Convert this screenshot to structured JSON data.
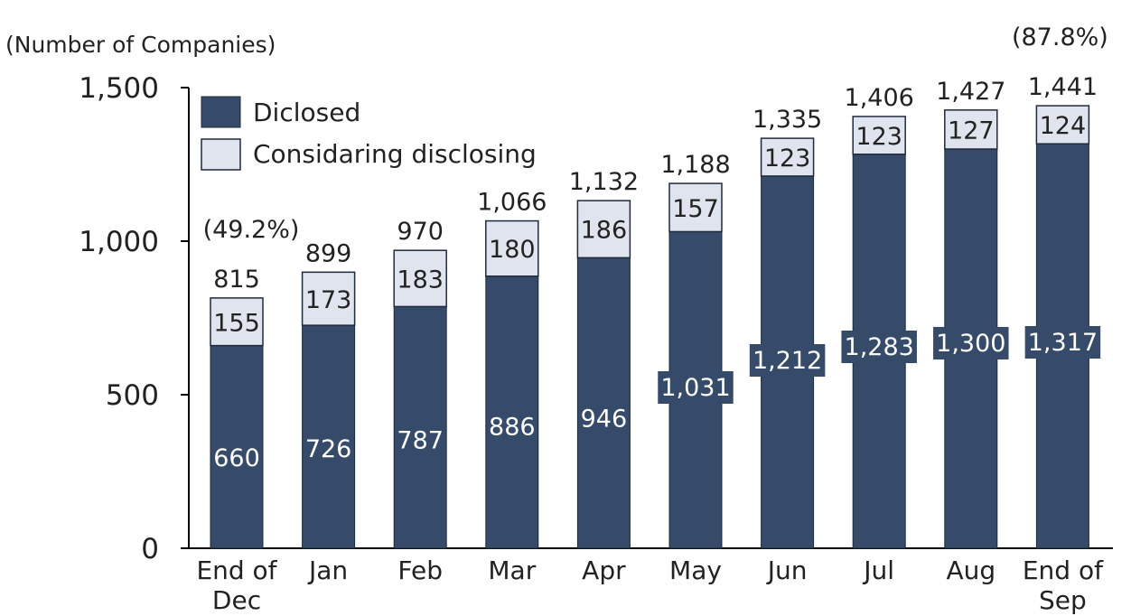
{
  "chart_data": {
    "type": "bar",
    "stacked": true,
    "ylabel": "(Number of Companies)",
    "ylim": [
      0,
      1500
    ],
    "yticks": [
      0,
      500,
      1000,
      1500
    ],
    "ytick_labels": [
      "0",
      "500",
      "1,000",
      "1,500"
    ],
    "grid": false,
    "legend_position": "top-left",
    "categories": [
      [
        "End of",
        "Dec"
      ],
      [
        "Jan"
      ],
      [
        "Feb"
      ],
      [
        "Mar"
      ],
      [
        "Apr"
      ],
      [
        "May"
      ],
      [
        "Jun"
      ],
      [
        "Jul"
      ],
      [
        "Aug"
      ],
      [
        "End of",
        "Sep"
      ]
    ],
    "series": [
      {
        "name": "Diclosed",
        "color": "#364b6a",
        "values": [
          660,
          726,
          787,
          886,
          946,
          1031,
          1212,
          1283,
          1300,
          1317
        ],
        "labels": [
          "660",
          "726",
          "787",
          "886",
          "946",
          "1,031",
          "1,212",
          "1,283",
          "1,300",
          "1,317"
        ]
      },
      {
        "name": "Considaring disclosing",
        "color": "#dfe4ee",
        "values": [
          155,
          173,
          183,
          180,
          186,
          157,
          123,
          123,
          127,
          124
        ],
        "labels": [
          "155",
          "173",
          "183",
          "180",
          "186",
          "157",
          "123",
          "123",
          "127",
          "124"
        ]
      }
    ],
    "totals": [
      815,
      899,
      970,
      1066,
      1132,
      1188,
      1335,
      1406,
      1427,
      1441
    ],
    "total_labels": [
      "815",
      "899",
      "970",
      "1,066",
      "1,132",
      "1,188",
      "1,335",
      "1,406",
      "1,427",
      "1,441"
    ],
    "annotations": [
      {
        "category_index": 0,
        "text": "(49.2%)"
      },
      {
        "category_index": 9,
        "text": "(87.8%)"
      }
    ]
  }
}
